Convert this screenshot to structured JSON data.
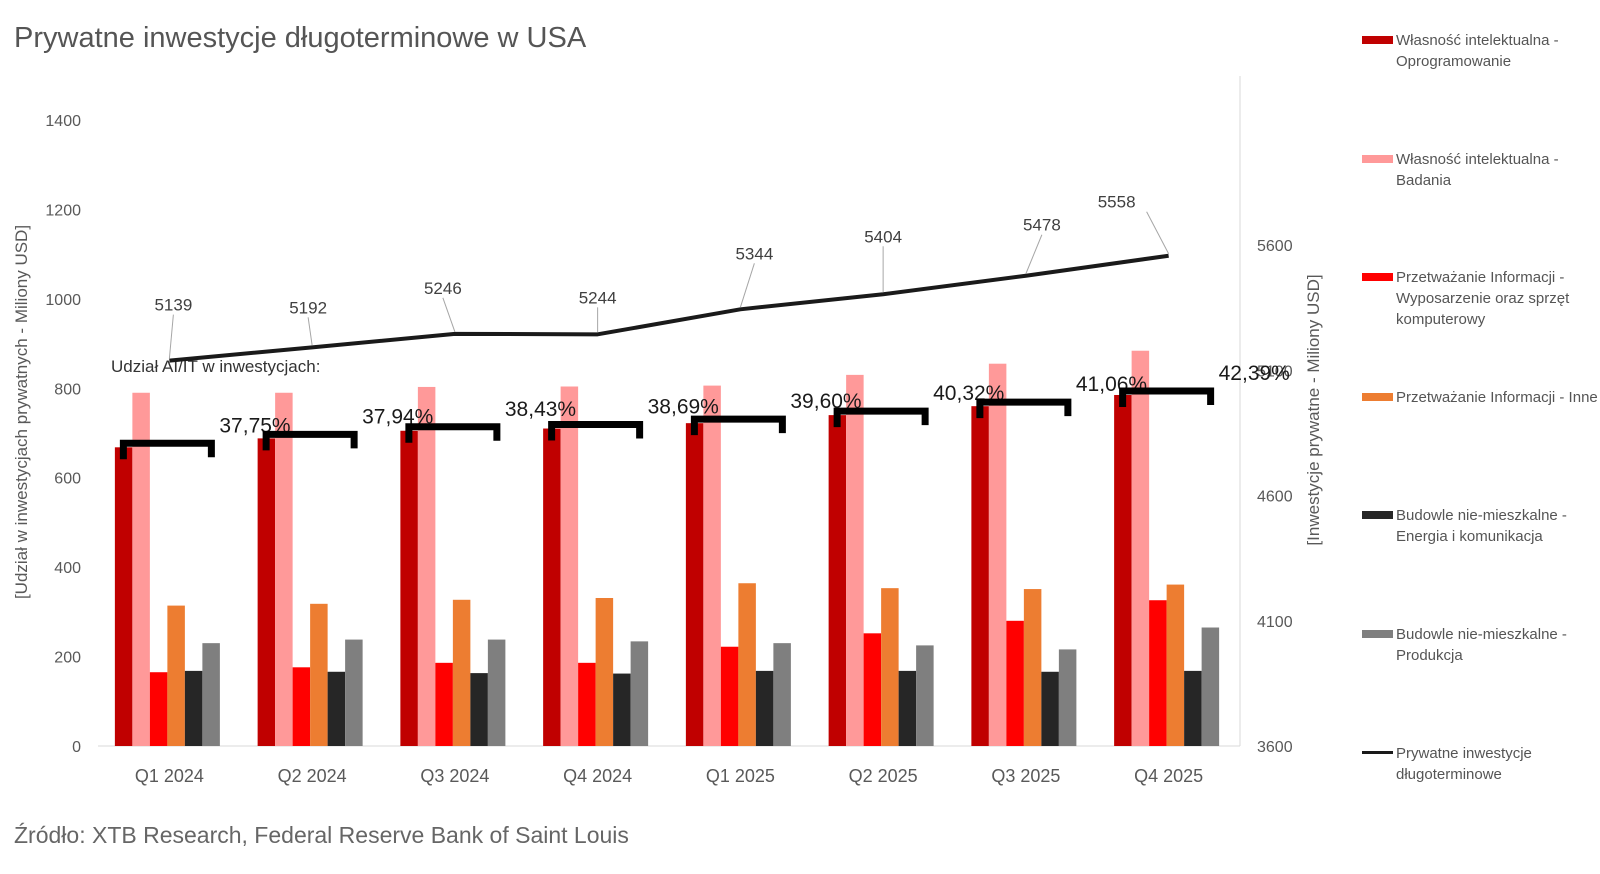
{
  "title": "Prywatne inwestycje długoterminowe w USA",
  "source": "Źródło: XTB Research, Federal Reserve Bank of Saint Louis",
  "annotation": "Udział AI/IT w inwestycjach:",
  "colors": {
    "software": "#c00000",
    "research": "#ff9999",
    "computers": "#ff0000",
    "info_other": "#ed7d31",
    "energy": "#262626",
    "manufacturing": "#7f7f7f",
    "line": "#1a1a1a",
    "bracket": "#000000"
  },
  "legend": [
    {
      "label": "Własność intelektualna - Oprogramowanie",
      "color": "#c00000",
      "kind": "bar"
    },
    {
      "label": "Własność intelektualna - Badania",
      "color": "#ff9999",
      "kind": "bar"
    },
    {
      "label": "Przetważanie Informacji - Wyposarzenie oraz sprzęt komputerowy",
      "color": "#ff0000",
      "kind": "bar"
    },
    {
      "label": "Przetważanie Informacji - Inne",
      "color": "#ed7d31",
      "kind": "bar"
    },
    {
      "label": "Budowle nie-mieszkalne - Energia i komunikacja",
      "color": "#262626",
      "kind": "bar"
    },
    {
      "label": "Budowle nie-mieszkalne - Produkcja",
      "color": "#7f7f7f",
      "kind": "bar"
    },
    {
      "label": "Prywatne inwestycje długoterminowe",
      "color": "#1a1a1a",
      "kind": "line"
    }
  ],
  "chart_data": {
    "type": "bar",
    "title": "Prywatne inwestycje długoterminowe w USA",
    "categories": [
      "Q1 2024",
      "Q2 2024",
      "Q3 2024",
      "Q4 2024",
      "Q1 2025",
      "Q2 2025",
      "Q3 2025",
      "Q4 2025"
    ],
    "ylabel": "[Udział w inwestycjach prywatnych - Miliony USD]",
    "ylim": [
      0,
      1400
    ],
    "yticks": [
      0,
      200,
      400,
      600,
      800,
      1000,
      1200,
      1400
    ],
    "y2label": "[Inwestycje prywatne - Miliony USD]",
    "y2lim": [
      3600,
      6100
    ],
    "y2ticks": [
      3600,
      4100,
      4600,
      5100,
      5600
    ],
    "grid": false,
    "legend_position": "right",
    "series": [
      {
        "name": "Własność intelektualna - Oprogramowanie",
        "values": [
          668,
          688,
          705,
          710,
          722,
          740,
          760,
          785
        ]
      },
      {
        "name": "Własność intelektualna - Badania",
        "values": [
          790,
          790,
          803,
          804,
          806,
          830,
          855,
          884
        ]
      },
      {
        "name": "Przetważanie Informacji - Wyposarzenie oraz sprzęt komputerowy",
        "values": [
          165,
          176,
          186,
          186,
          222,
          252,
          280,
          326
        ]
      },
      {
        "name": "Przetważanie Informacji - Inne",
        "values": [
          314,
          318,
          327,
          331,
          364,
          353,
          351,
          361
        ]
      },
      {
        "name": "Budowle nie-mieszkalne - Energia i komunikacja",
        "values": [
          168,
          166,
          163,
          162,
          168,
          168,
          166,
          168
        ]
      },
      {
        "name": "Budowle nie-mieszkalne - Produkcja",
        "values": [
          230,
          238,
          238,
          234,
          230,
          225,
          216,
          265
        ]
      }
    ],
    "line_series": {
      "name": "Prywatne inwestycje długoterminowe",
      "axis": "right",
      "values": [
        5139,
        5192,
        5246,
        5244,
        5344,
        5404,
        5478,
        5558
      ],
      "labels": [
        "5139",
        "5192",
        "5246",
        "5244",
        "5344",
        "5404",
        "5478",
        "5558"
      ]
    },
    "ai_share": {
      "label": "Udział AI/IT w inwestycjach:",
      "values": [
        37.75,
        37.94,
        38.43,
        38.69,
        39.6,
        40.32,
        41.06,
        42.39
      ],
      "labels": [
        "37,75%",
        "37,94%",
        "38,43%",
        "38,69%",
        "39,60%",
        "40,32%",
        "41,06%",
        "42,39%"
      ]
    }
  }
}
